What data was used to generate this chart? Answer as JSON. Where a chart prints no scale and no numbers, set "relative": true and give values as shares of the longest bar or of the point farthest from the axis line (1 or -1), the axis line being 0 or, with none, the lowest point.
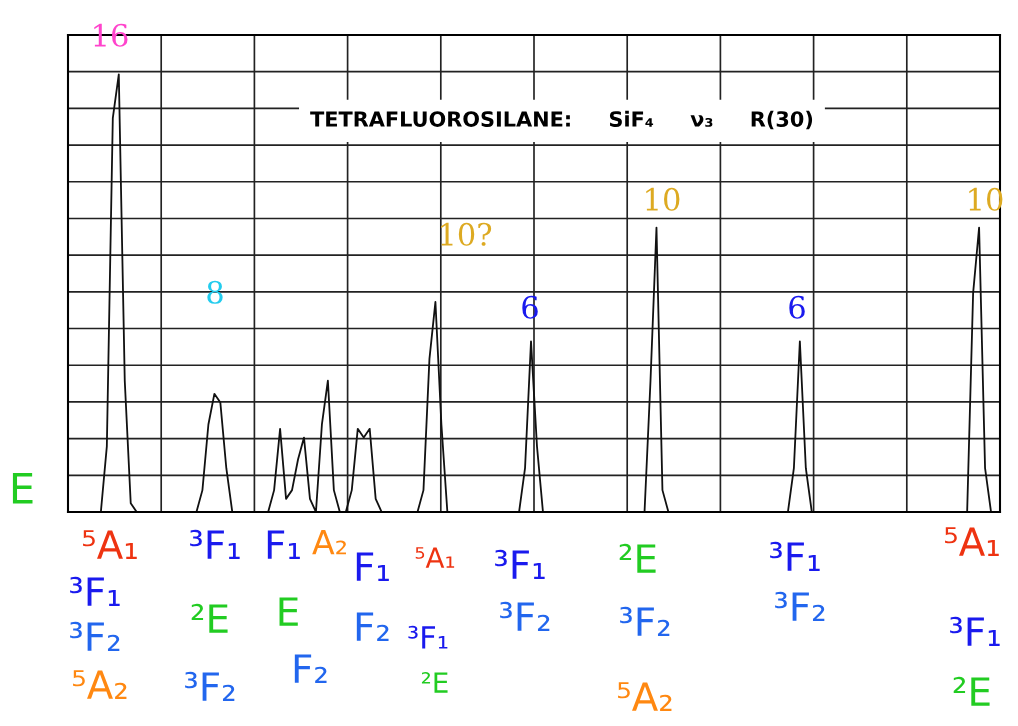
{
  "chart_data": {
    "type": "line",
    "title": "TETRAFLUOROSILANE:     SiF₄     ν₃     R(30)",
    "relative": true,
    "grid": true,
    "tick_labels": false,
    "marker": "none",
    "line_style": "solid",
    "categories": [
      null,
      null,
      null,
      null,
      null,
      null,
      null,
      null,
      null,
      null,
      null,
      null,
      null,
      null,
      null,
      null,
      null,
      null,
      null,
      null,
      null,
      null,
      null,
      null,
      null,
      null,
      null,
      null,
      null,
      null,
      null,
      null,
      null,
      null,
      null,
      null,
      null,
      null,
      null,
      null,
      null,
      null,
      null,
      null,
      null,
      null,
      null,
      null,
      null,
      null,
      null,
      null,
      null,
      null,
      null,
      null,
      null,
      null,
      null,
      null,
      null,
      null,
      null,
      null,
      null,
      null,
      null,
      null,
      null,
      null,
      null,
      null,
      null,
      null,
      null,
      null,
      null,
      null,
      null,
      null,
      null,
      null,
      null,
      null,
      null,
      null,
      null,
      null,
      null,
      null,
      null,
      null,
      null,
      null,
      null,
      null,
      null,
      null,
      null,
      null,
      null,
      null,
      null,
      null,
      null,
      null,
      null,
      null,
      null,
      null,
      null,
      null,
      null,
      null,
      null,
      null,
      null,
      null,
      null,
      null,
      null,
      null,
      null,
      null,
      null,
      null,
      null,
      null,
      null,
      null,
      null,
      null,
      null,
      null,
      null,
      null,
      null,
      null,
      null,
      null,
      null,
      null,
      null,
      null,
      null,
      null,
      null,
      null,
      null,
      null,
      null,
      null,
      null,
      null,
      null,
      null
    ],
    "series": [
      {
        "color": "#111111",
        "values": [
          0,
          0,
          0,
          0,
          0,
          0,
          0.15,
          0.9,
          1.0,
          0.3,
          0.02,
          0,
          0,
          0,
          0,
          0,
          0,
          0,
          0,
          0,
          0,
          0,
          0.05,
          0.2,
          0.27,
          0.25,
          0.1,
          0,
          0,
          0,
          0,
          0,
          0,
          0,
          0.05,
          0.19,
          0.03,
          0.05,
          0.12,
          0.17,
          0.03,
          0,
          0.2,
          0.3,
          0.05,
          0,
          0,
          0.05,
          0.19,
          0.17,
          0.19,
          0.03,
          0,
          0,
          0,
          0,
          0,
          0,
          0,
          0.05,
          0.35,
          0.48,
          0.2,
          0,
          0,
          0,
          0,
          0,
          0,
          0,
          0,
          0,
          0,
          0,
          0,
          0,
          0.1,
          0.39,
          0.15,
          0,
          0,
          0,
          0,
          0,
          0,
          0,
          0,
          0,
          0,
          0,
          0,
          0,
          0,
          0,
          0,
          0,
          0,
          0.3,
          0.65,
          0.05,
          0,
          0,
          0,
          0,
          0,
          0,
          0,
          0,
          0,
          0,
          0,
          0,
          0,
          0,
          0,
          0,
          0,
          0,
          0,
          0,
          0,
          0.1,
          0.39,
          0.1,
          0,
          0,
          0,
          0,
          0,
          0,
          0,
          0,
          0,
          0,
          0,
          0,
          0,
          0,
          0,
          0,
          0,
          0,
          0,
          0,
          0,
          0,
          0,
          0,
          0,
          0,
          0,
          0.5,
          0.65,
          0.1,
          0,
          0
        ]
      }
    ],
    "annotations": [
      "16",
      "8",
      "10?",
      "6",
      "10",
      "6",
      "10",
      "E",
      "⁵A₁",
      "³F₁",
      "³F₂",
      "⁵A₂",
      "³F₁",
      "²E",
      "³F₂",
      "F₁",
      "E",
      "F₂",
      "A₂",
      "F₁",
      "F₂",
      "⁵A₁",
      "³F₁",
      "²E",
      "³F₁",
      "³F₂",
      "²E",
      "³F₂",
      "⁵A₂",
      "³F₁",
      "³F₂",
      "⁵A₁",
      "³F₁",
      "²E"
    ]
  }
}
